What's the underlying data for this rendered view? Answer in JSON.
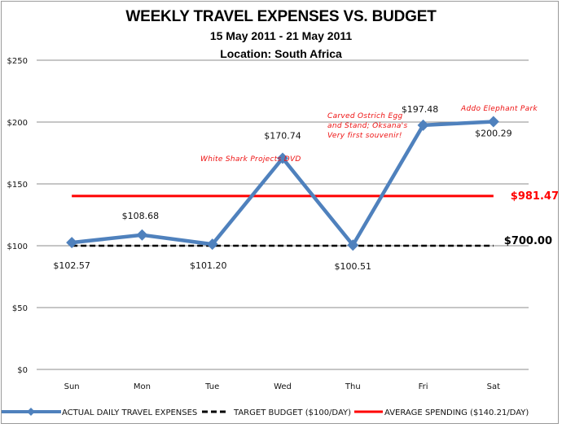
{
  "title": {
    "main": "WEEKLY TRAVEL EXPENSES VS. BUDGET",
    "dates": "15 May 2011 - 21 May 2011",
    "location": "Location: South Africa"
  },
  "colors": {
    "actual": "#4f81bd",
    "target": "#000000",
    "average": "#ff0000",
    "annotation": "#ee1111",
    "grid": "#8c8c8c"
  },
  "chart_data": {
    "type": "line",
    "title": "WEEKLY TRAVEL EXPENSES VS. BUDGET",
    "subtitle": [
      "15 May 2011 - 21 May 2011",
      "Location: South Africa"
    ],
    "categories": [
      "Sun",
      "Mon",
      "Tue",
      "Wed",
      "Thu",
      "Fri",
      "Sat"
    ],
    "series": [
      {
        "name": "ACTUAL DAILY TRAVEL EXPENSES",
        "style": "solid-blue-diamond",
        "values": [
          102.57,
          108.68,
          101.2,
          170.74,
          100.51,
          197.48,
          200.29
        ]
      },
      {
        "name": "TARGET BUDGET ($100/DAY)",
        "style": "dashed-black",
        "values": [
          100,
          100,
          100,
          100,
          100,
          100,
          100
        ]
      },
      {
        "name": "AVERAGE SPENDING ($140.21/DAY)",
        "style": "solid-red",
        "values": [
          140.21,
          140.21,
          140.21,
          140.21,
          140.21,
          140.21,
          140.21
        ]
      }
    ],
    "data_labels": [
      "$102.57",
      "$108.68",
      "$101.20",
      "$170.74",
      "$100.51",
      "$197.48",
      "$200.29"
    ],
    "totals": {
      "average_total": "$981.47",
      "target_total": "$700.00"
    },
    "annotations": [
      {
        "day": "Wed",
        "text": "White Shark Projects DVD"
      },
      {
        "day": "Fri",
        "text": [
          "Carved Ostrich Egg",
          "and Stand; Oksana's",
          "Very first souvenir!"
        ]
      },
      {
        "day": "Sat",
        "text": "Addo Elephant Park"
      }
    ],
    "xlabel": "",
    "ylabel": "",
    "ylim": [
      0,
      250
    ],
    "yticks": [
      "$0",
      "$50",
      "$100",
      "$150",
      "$200",
      "$250"
    ],
    "grid": true,
    "legend_position": "bottom"
  }
}
